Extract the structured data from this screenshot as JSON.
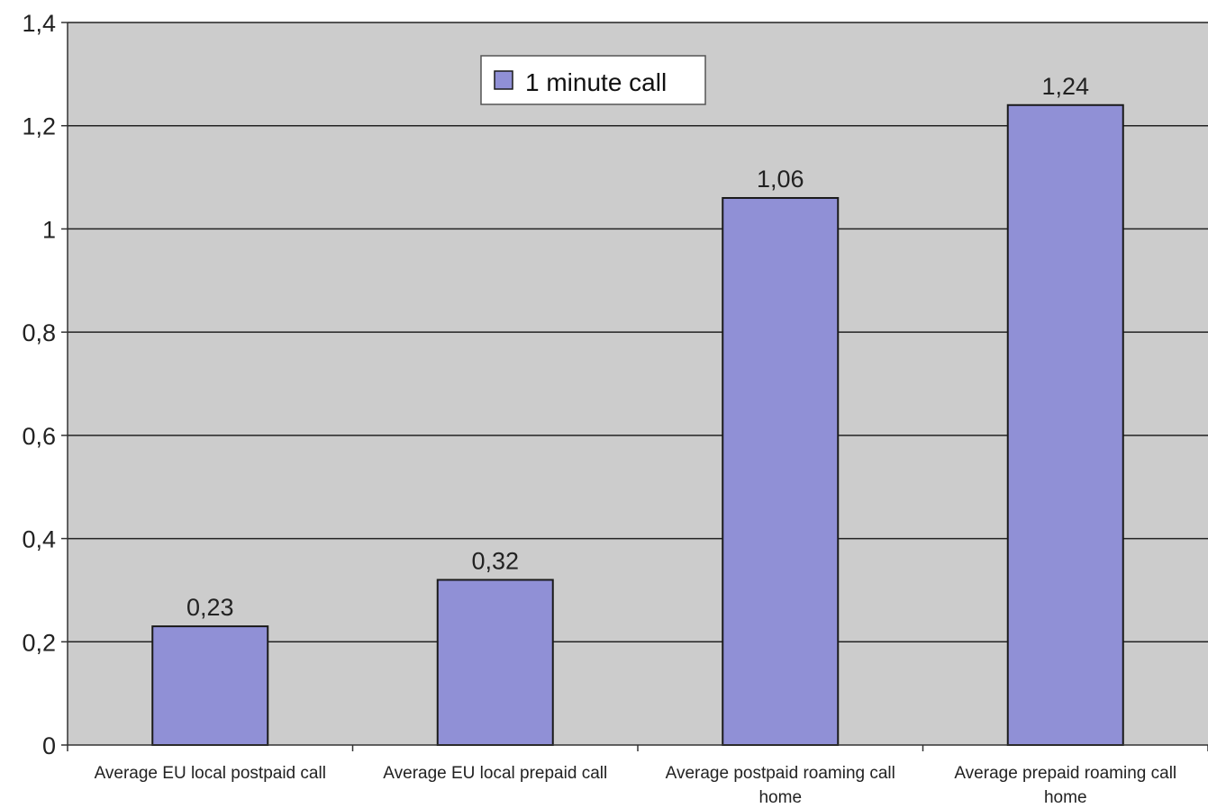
{
  "chart_data": {
    "type": "bar",
    "categories": [
      [
        "Average EU local postpaid call"
      ],
      [
        "Average EU local prepaid call"
      ],
      [
        "Average postpaid roaming call",
        "home"
      ],
      [
        "Average prepaid roaming call",
        "home"
      ]
    ],
    "series": [
      {
        "name": "1 minute call",
        "values": [
          0.23,
          0.32,
          1.06,
          1.24
        ],
        "value_labels": [
          "0,23",
          "0,32",
          "1,06",
          "1,24"
        ],
        "color": "#9090d6"
      }
    ],
    "yticks": [
      0,
      0.2,
      0.4,
      0.6,
      0.8,
      1,
      1.2,
      1.4
    ],
    "ytick_labels": [
      "0",
      "0,2",
      "0,4",
      "0,6",
      "0,8",
      "1",
      "1,2",
      "1,4"
    ],
    "ylim": [
      0,
      1.4
    ],
    "title": "",
    "xlabel": "",
    "ylabel": "",
    "grid": true,
    "legend_position": "top-center",
    "colors": {
      "plot_background": "#cccccc",
      "gridline": "#222222",
      "bar": "#9090d6",
      "bar_edge": "#1a1a1a"
    }
  }
}
